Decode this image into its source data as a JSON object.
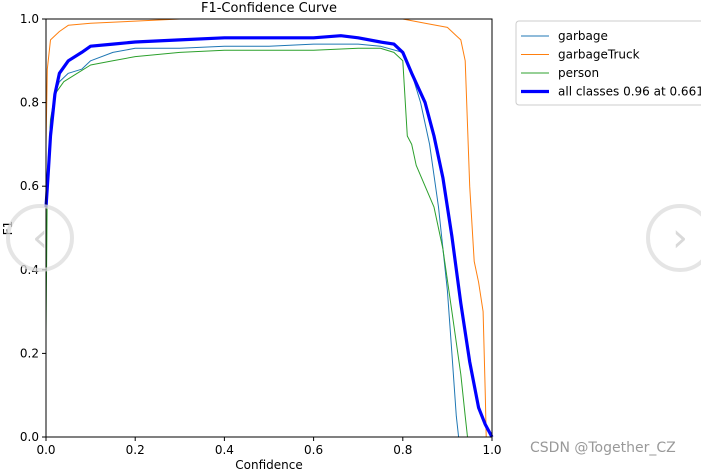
{
  "watermark": "CSDN @Together_CZ",
  "nav": {
    "prev_icon": "‹",
    "next_icon": "›"
  },
  "colors": {
    "garbage": "#1f77b4",
    "garbageTruck": "#ff7f0e",
    "person": "#2ca02c",
    "all": "#0000ff"
  },
  "chart_data": {
    "type": "line",
    "title": "F1-Confidence Curve",
    "xlabel": "Confidence",
    "ylabel": "F1",
    "xlim": [
      0,
      1
    ],
    "ylim": [
      0,
      1
    ],
    "xticks": [
      "0.0",
      "0.2",
      "0.4",
      "0.6",
      "0.8",
      "1.0"
    ],
    "yticks": [
      "0.0",
      "0.2",
      "0.4",
      "0.6",
      "0.8",
      "1.0"
    ],
    "grid": false,
    "legend_position": "outside-top-right",
    "series": [
      {
        "name": "garbage",
        "color": "#1f77b4",
        "width": 1,
        "points": [
          [
            0,
            0.58
          ],
          [
            0.01,
            0.75
          ],
          [
            0.02,
            0.82
          ],
          [
            0.03,
            0.85
          ],
          [
            0.05,
            0.87
          ],
          [
            0.08,
            0.88
          ],
          [
            0.1,
            0.9
          ],
          [
            0.15,
            0.92
          ],
          [
            0.2,
            0.93
          ],
          [
            0.3,
            0.93
          ],
          [
            0.4,
            0.935
          ],
          [
            0.5,
            0.935
          ],
          [
            0.6,
            0.94
          ],
          [
            0.7,
            0.94
          ],
          [
            0.75,
            0.935
          ],
          [
            0.8,
            0.92
          ],
          [
            0.82,
            0.87
          ],
          [
            0.84,
            0.8
          ],
          [
            0.86,
            0.7
          ],
          [
            0.88,
            0.55
          ],
          [
            0.9,
            0.35
          ],
          [
            0.91,
            0.2
          ],
          [
            0.92,
            0.05
          ],
          [
            0.925,
            0
          ]
        ]
      },
      {
        "name": "garbageTruck",
        "color": "#ff7f0e",
        "width": 1,
        "points": [
          [
            0,
            0.7
          ],
          [
            0.003,
            0.88
          ],
          [
            0.01,
            0.95
          ],
          [
            0.03,
            0.97
          ],
          [
            0.05,
            0.985
          ],
          [
            0.1,
            0.99
          ],
          [
            0.2,
            0.995
          ],
          [
            0.3,
            1.0
          ],
          [
            0.5,
            1.0
          ],
          [
            0.7,
            1.0
          ],
          [
            0.8,
            1.0
          ],
          [
            0.85,
            0.99
          ],
          [
            0.9,
            0.98
          ],
          [
            0.92,
            0.96
          ],
          [
            0.93,
            0.95
          ],
          [
            0.94,
            0.9
          ],
          [
            0.95,
            0.6
          ],
          [
            0.96,
            0.42
          ],
          [
            0.97,
            0.37
          ],
          [
            0.98,
            0.3
          ],
          [
            0.985,
            0.1
          ],
          [
            0.987,
            0
          ]
        ]
      },
      {
        "name": "person",
        "color": "#2ca02c",
        "width": 1,
        "points": [
          [
            0,
            0.25
          ],
          [
            0.003,
            0.6
          ],
          [
            0.01,
            0.76
          ],
          [
            0.02,
            0.82
          ],
          [
            0.04,
            0.85
          ],
          [
            0.07,
            0.87
          ],
          [
            0.1,
            0.89
          ],
          [
            0.15,
            0.9
          ],
          [
            0.2,
            0.91
          ],
          [
            0.3,
            0.92
          ],
          [
            0.4,
            0.925
          ],
          [
            0.5,
            0.925
          ],
          [
            0.6,
            0.925
          ],
          [
            0.7,
            0.93
          ],
          [
            0.75,
            0.93
          ],
          [
            0.78,
            0.92
          ],
          [
            0.8,
            0.9
          ],
          [
            0.81,
            0.72
          ],
          [
            0.82,
            0.7
          ],
          [
            0.83,
            0.65
          ],
          [
            0.85,
            0.6
          ],
          [
            0.87,
            0.55
          ],
          [
            0.89,
            0.45
          ],
          [
            0.91,
            0.3
          ],
          [
            0.93,
            0.15
          ],
          [
            0.94,
            0.05
          ],
          [
            0.945,
            0
          ]
        ]
      },
      {
        "name": "all classes 0.96 at 0.661",
        "color": "#0000ff",
        "width": 3.2,
        "points": [
          [
            0,
            0.55
          ],
          [
            0.005,
            0.63
          ],
          [
            0.01,
            0.72
          ],
          [
            0.02,
            0.82
          ],
          [
            0.03,
            0.87
          ],
          [
            0.05,
            0.9
          ],
          [
            0.08,
            0.92
          ],
          [
            0.1,
            0.935
          ],
          [
            0.15,
            0.94
          ],
          [
            0.2,
            0.945
          ],
          [
            0.3,
            0.95
          ],
          [
            0.4,
            0.955
          ],
          [
            0.5,
            0.955
          ],
          [
            0.6,
            0.955
          ],
          [
            0.661,
            0.96
          ],
          [
            0.7,
            0.955
          ],
          [
            0.75,
            0.945
          ],
          [
            0.78,
            0.94
          ],
          [
            0.8,
            0.92
          ],
          [
            0.82,
            0.87
          ],
          [
            0.85,
            0.8
          ],
          [
            0.87,
            0.72
          ],
          [
            0.89,
            0.62
          ],
          [
            0.91,
            0.48
          ],
          [
            0.93,
            0.32
          ],
          [
            0.95,
            0.18
          ],
          [
            0.97,
            0.07
          ],
          [
            0.985,
            0.03
          ],
          [
            1.0,
            0
          ]
        ]
      }
    ]
  }
}
